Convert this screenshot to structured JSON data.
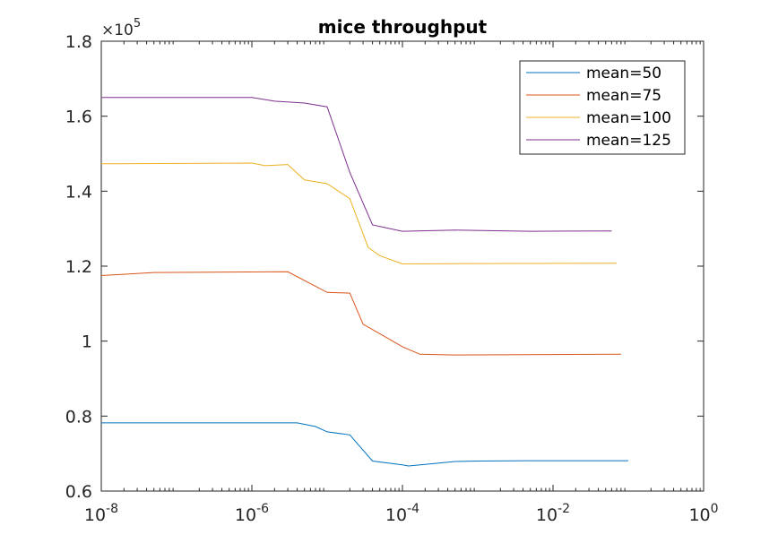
{
  "chart_data": {
    "type": "line",
    "title": "mice throughput",
    "xlabel": "",
    "ylabel": "",
    "xscale": "log",
    "xlim": [
      1e-08,
      1
    ],
    "ylim": [
      60000,
      180000
    ],
    "y_exponent_label": "×10",
    "y_exponent_power": "5",
    "x_ticks": [
      {
        "value": 1e-08,
        "base": "10",
        "exp": "-8"
      },
      {
        "value": 1e-06,
        "base": "10",
        "exp": "-6"
      },
      {
        "value": 0.0001,
        "base": "10",
        "exp": "-4"
      },
      {
        "value": 0.01,
        "base": "10",
        "exp": "-2"
      },
      {
        "value": 1,
        "base": "10",
        "exp": "0"
      }
    ],
    "y_ticks": [
      {
        "value": 60000,
        "label": "0.6"
      },
      {
        "value": 80000,
        "label": "0.8"
      },
      {
        "value": 100000,
        "label": "1"
      },
      {
        "value": 120000,
        "label": "1.2"
      },
      {
        "value": 140000,
        "label": "1.4"
      },
      {
        "value": 160000,
        "label": "1.6"
      },
      {
        "value": 180000,
        "label": "1.8"
      }
    ],
    "grid": false,
    "legend_position": "top-right",
    "series": [
      {
        "name": "mean=50",
        "color": "#0072BD",
        "points": [
          [
            1e-08,
            78200
          ],
          [
            4e-06,
            78200
          ],
          [
            7e-06,
            77200
          ],
          [
            1e-05,
            75800
          ],
          [
            2e-05,
            75000
          ],
          [
            4e-05,
            68000
          ],
          [
            0.0001,
            67000
          ],
          [
            0.00012,
            66700
          ],
          [
            0.0002,
            67100
          ],
          [
            0.0005,
            67900
          ],
          [
            0.001,
            68000
          ],
          [
            0.005,
            68100
          ],
          [
            0.01,
            68100
          ],
          [
            0.1,
            68100
          ]
        ]
      },
      {
        "name": "mean=75",
        "color": "#D95319",
        "points": [
          [
            1e-08,
            117500
          ],
          [
            5e-08,
            118300
          ],
          [
            3e-06,
            118500
          ],
          [
            1e-05,
            113000
          ],
          [
            2e-05,
            112800
          ],
          [
            3e-05,
            104500
          ],
          [
            0.0001,
            98500
          ],
          [
            0.00017,
            96500
          ],
          [
            0.0005,
            96300
          ],
          [
            0.08,
            96500
          ]
        ]
      },
      {
        "name": "mean=100",
        "color": "#EDB120",
        "points": [
          [
            1e-08,
            147300
          ],
          [
            1e-06,
            147500
          ],
          [
            1.5e-06,
            146800
          ],
          [
            3e-06,
            147100
          ],
          [
            5e-06,
            143000
          ],
          [
            1e-05,
            142000
          ],
          [
            2e-05,
            138000
          ],
          [
            3.5e-05,
            125000
          ],
          [
            5e-05,
            122800
          ],
          [
            0.0001,
            120600
          ],
          [
            0.001,
            120700
          ],
          [
            0.07,
            120800
          ]
        ]
      },
      {
        "name": "mean=125",
        "color": "#7E2F8E",
        "points": [
          [
            1e-08,
            165000
          ],
          [
            1e-06,
            165000
          ],
          [
            2e-06,
            164000
          ],
          [
            5e-06,
            163500
          ],
          [
            1e-05,
            162500
          ],
          [
            2e-05,
            145000
          ],
          [
            4e-05,
            131000
          ],
          [
            0.0001,
            129300
          ],
          [
            0.0005,
            129600
          ],
          [
            0.005,
            129300
          ],
          [
            0.06,
            129400
          ]
        ]
      }
    ]
  }
}
